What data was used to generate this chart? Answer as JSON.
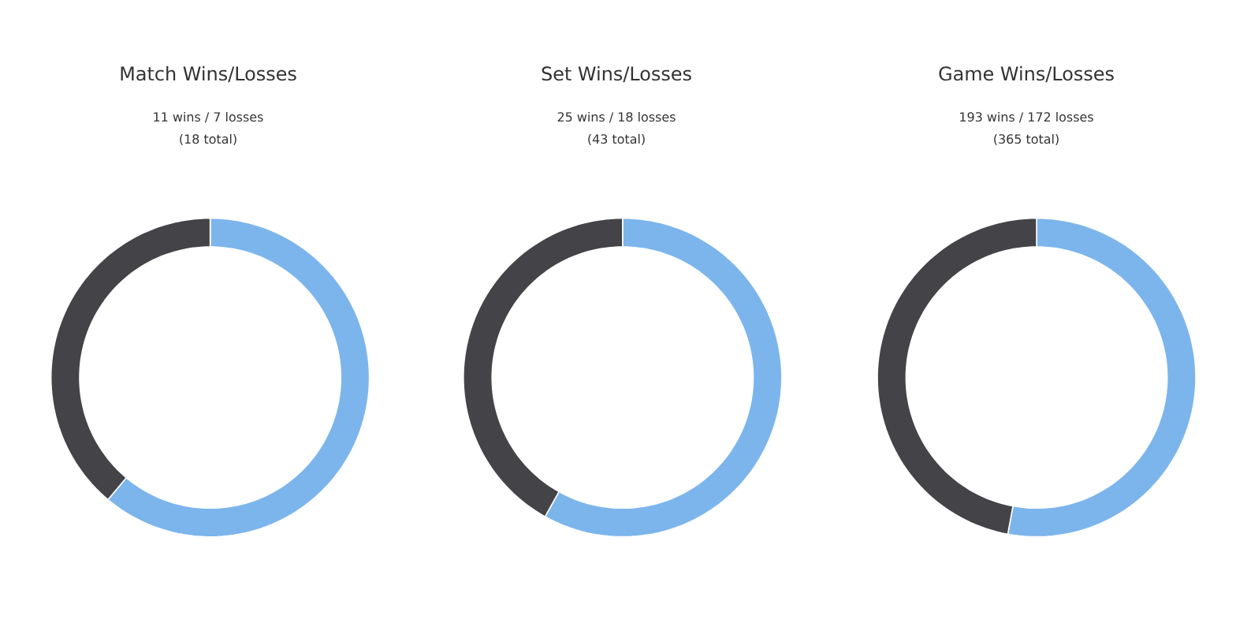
{
  "chart_data": [
    {
      "type": "donut",
      "title": "Match Wins/Losses",
      "subtitle": "11 wins / 7 losses",
      "annotations": [
        "(18 total)"
      ],
      "categories": [
        null,
        null
      ],
      "values": [
        61.1,
        38.9
      ],
      "colors": [
        "#7cb5ec",
        "#434348"
      ]
    },
    {
      "type": "donut",
      "title": "Set Wins/Losses",
      "subtitle": "25 wins / 18 losses",
      "annotations": [
        "(43 total)"
      ],
      "categories": [
        null,
        null
      ],
      "values": [
        58.1,
        41.9
      ],
      "colors": [
        "#7cb5ec",
        "#434348"
      ]
    },
    {
      "type": "donut",
      "title": "Game Wins/Losses",
      "subtitle": "193 wins / 172 losses",
      "annotations": [
        "(365 total)"
      ],
      "categories": [
        null,
        null
      ],
      "values": [
        52.9,
        47.1
      ],
      "colors": [
        "#7cb5ec",
        "#434348"
      ]
    }
  ]
}
